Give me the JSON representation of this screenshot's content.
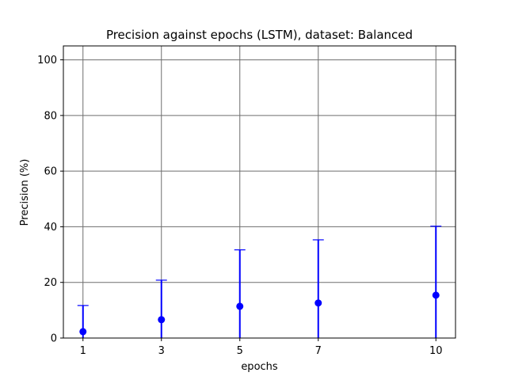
{
  "chart_data": {
    "type": "scatter",
    "title": "Precision against epochs (LSTM), dataset: Balanced",
    "xlabel": "epochs",
    "ylabel": "Precision (%)",
    "x_ticks": [
      1,
      3,
      5,
      7,
      10
    ],
    "y_ticks": [
      0,
      20,
      40,
      60,
      80,
      100
    ],
    "xlim": [
      0.5,
      10.5
    ],
    "ylim": [
      0,
      105
    ],
    "grid": true,
    "marker_color": "#0000ff",
    "grid_color": "#6e6e6e",
    "series": [
      {
        "x": [
          1,
          3,
          5,
          7,
          10
        ],
        "y": [
          2.3,
          6.6,
          11.4,
          12.6,
          15.4
        ],
        "err_low": [
          0,
          0,
          0,
          0,
          0
        ],
        "err_high": [
          11.7,
          20.8,
          31.7,
          35.3,
          40.2
        ]
      }
    ]
  }
}
